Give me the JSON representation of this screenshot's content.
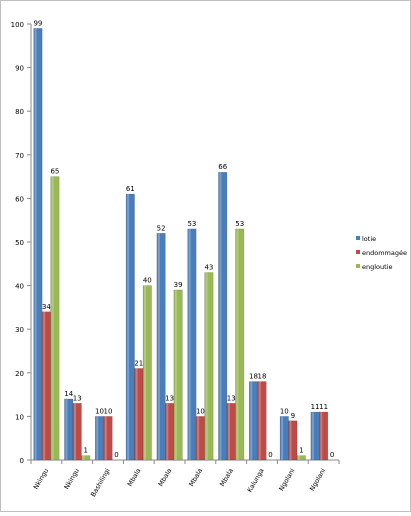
{
  "chart_data": {
    "type": "bar",
    "categories": [
      "Nkingu",
      "Nkingu",
      "Bashilingi",
      "Mbala",
      "Mbala",
      "Mbala",
      "Mbala",
      "Kalunga",
      "Ngolani",
      "Ngolani"
    ],
    "series": [
      {
        "name": "lotie",
        "color": "#4a7ebb",
        "values": [
          99,
          14,
          10,
          61,
          52,
          53,
          66,
          18,
          10,
          11
        ]
      },
      {
        "name": "endommagée",
        "color": "#be4b48",
        "values": [
          34,
          13,
          10,
          21,
          13,
          10,
          13,
          18,
          9,
          11
        ]
      },
      {
        "name": "engloutie",
        "color": "#98b954",
        "values": [
          65,
          1,
          0,
          40,
          39,
          43,
          53,
          0,
          1,
          0
        ]
      }
    ],
    "data_labels": [
      [
        "99",
        "14",
        "10",
        "61",
        "52",
        "53",
        "66",
        "18",
        "10",
        "11"
      ],
      [
        "34",
        "13",
        "10",
        "21",
        "13",
        "10",
        "13",
        "18",
        "9",
        "11"
      ],
      [
        "65",
        "1",
        "0",
        "40",
        "39",
        "43",
        "53",
        "0",
        "1",
        "0"
      ]
    ],
    "y_ticks": [
      "0",
      "10",
      "20",
      "30",
      "40",
      "50",
      "60",
      "70",
      "80",
      "90",
      "100"
    ],
    "ylim": [
      0,
      100
    ],
    "grid": false,
    "legend_position": "right",
    "title": "",
    "xlabel": "",
    "ylabel": ""
  }
}
